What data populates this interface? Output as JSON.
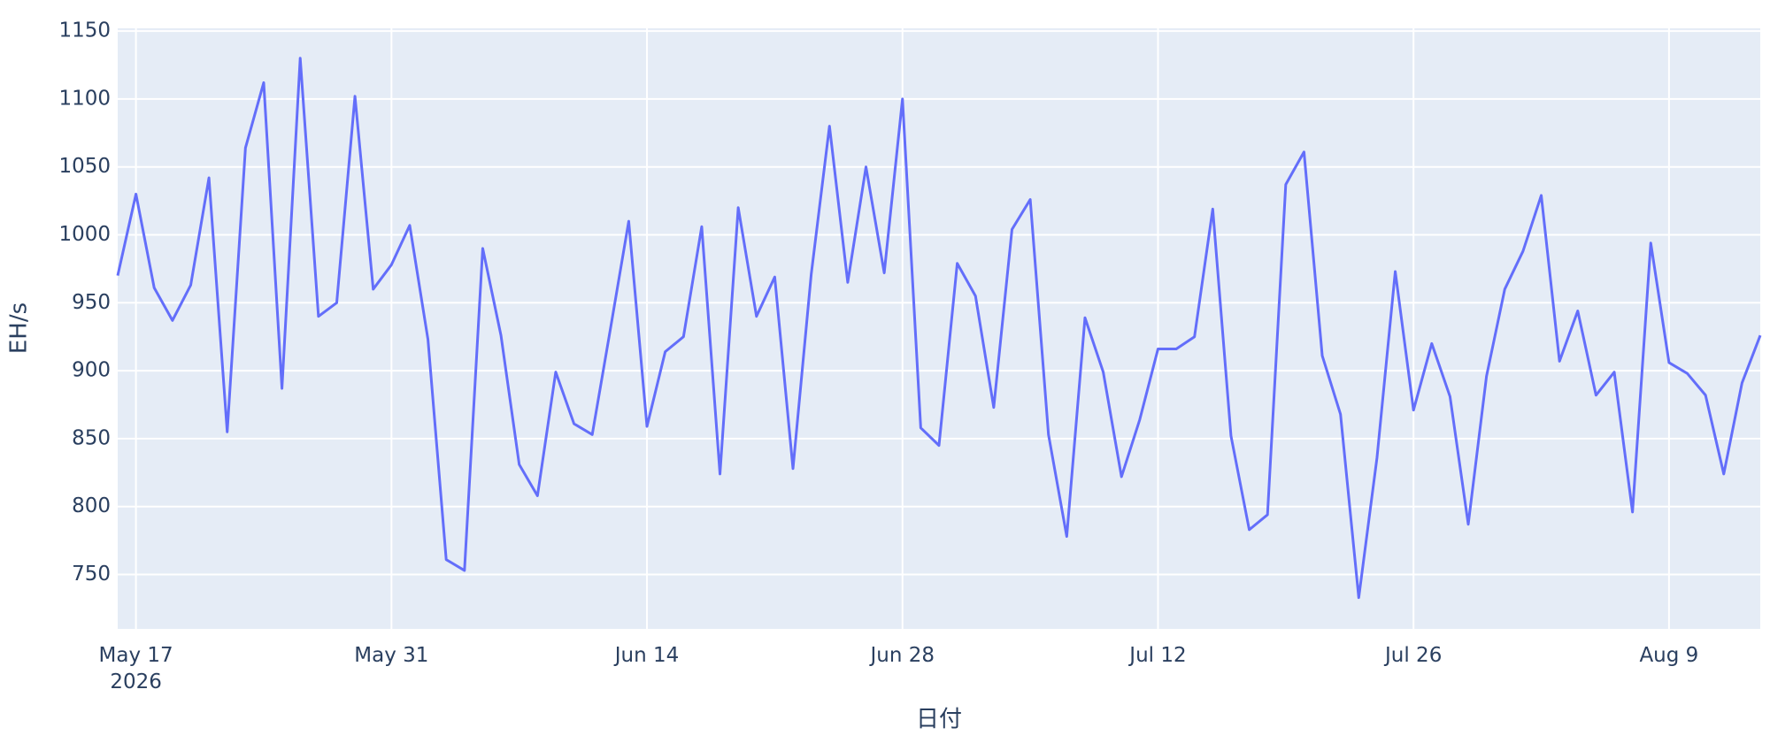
{
  "chart_data": {
    "type": "line",
    "x_title": "日付",
    "y_title": "EH/s",
    "x": [
      "2026-05-16",
      "2026-05-17",
      "2026-05-18",
      "2026-05-19",
      "2026-05-20",
      "2026-05-21",
      "2026-05-22",
      "2026-05-23",
      "2026-05-24",
      "2026-05-25",
      "2026-05-26",
      "2026-05-27",
      "2026-05-28",
      "2026-05-29",
      "2026-05-30",
      "2026-05-31",
      "2026-06-01",
      "2026-06-02",
      "2026-06-03",
      "2026-06-04",
      "2026-06-05",
      "2026-06-06",
      "2026-06-07",
      "2026-06-08",
      "2026-06-09",
      "2026-06-10",
      "2026-06-11",
      "2026-06-12",
      "2026-06-13",
      "2026-06-14",
      "2026-06-15",
      "2026-06-16",
      "2026-06-17",
      "2026-06-18",
      "2026-06-19",
      "2026-06-20",
      "2026-06-21",
      "2026-06-22",
      "2026-06-23",
      "2026-06-24",
      "2026-06-25",
      "2026-06-26",
      "2026-06-27",
      "2026-06-28",
      "2026-06-29",
      "2026-06-30",
      "2026-07-01",
      "2026-07-02",
      "2026-07-03",
      "2026-07-04",
      "2026-07-05",
      "2026-07-06",
      "2026-07-07",
      "2026-07-08",
      "2026-07-09",
      "2026-07-10",
      "2026-07-11",
      "2026-07-12",
      "2026-07-13",
      "2026-07-14",
      "2026-07-15",
      "2026-07-16",
      "2026-07-17",
      "2026-07-18",
      "2026-07-19",
      "2026-07-20",
      "2026-07-21",
      "2026-07-22",
      "2026-07-23",
      "2026-07-24",
      "2026-07-25",
      "2026-07-26",
      "2026-07-27",
      "2026-07-28",
      "2026-07-29",
      "2026-07-30",
      "2026-07-31",
      "2026-08-01",
      "2026-08-02",
      "2026-08-03",
      "2026-08-04",
      "2026-08-05",
      "2026-08-06",
      "2026-08-07",
      "2026-08-08",
      "2026-08-09",
      "2026-08-10",
      "2026-08-11",
      "2026-08-12",
      "2026-08-13",
      "2026-08-14"
    ],
    "series": [
      {
        "color": "#636efa",
        "values": [
          970,
          1030,
          961,
          937,
          963,
          1042,
          855,
          1064,
          1112,
          887,
          1130,
          940,
          950,
          1102,
          960,
          978,
          1007,
          923,
          761,
          753,
          990,
          926,
          831,
          808,
          899,
          861,
          853,
          931,
          1010,
          859,
          914,
          925,
          1006,
          824,
          1020,
          940,
          969,
          828,
          971,
          1080,
          965,
          1050,
          972,
          1100,
          858,
          845,
          979,
          955,
          873,
          1004,
          1026,
          853,
          778,
          939,
          899,
          822,
          864,
          916,
          916,
          925,
          1019,
          852,
          783,
          794,
          1037,
          1061,
          911,
          868,
          733,
          836,
          973,
          871,
          920,
          881,
          787,
          896,
          960,
          988,
          1029,
          907,
          944,
          882,
          899,
          796,
          994,
          906,
          898,
          882,
          824,
          891,
          926
        ]
      }
    ],
    "xlim": [
      "2026-05-16",
      "2026-08-14"
    ],
    "xticks": [
      {
        "value": "2026-05-17",
        "label": "May 17\n2026"
      },
      {
        "value": "2026-05-31",
        "label": "May 31"
      },
      {
        "value": "2026-06-14",
        "label": "Jun 14"
      },
      {
        "value": "2026-06-28",
        "label": "Jun 28"
      },
      {
        "value": "2026-07-12",
        "label": "Jul 12"
      },
      {
        "value": "2026-07-26",
        "label": "Jul 26"
      },
      {
        "value": "2026-08-09",
        "label": "Aug 9"
      }
    ],
    "ylim": [
      710,
      1152
    ],
    "yticks": [
      750,
      800,
      850,
      900,
      950,
      1000,
      1050,
      1100,
      1150
    ],
    "grid": true
  }
}
